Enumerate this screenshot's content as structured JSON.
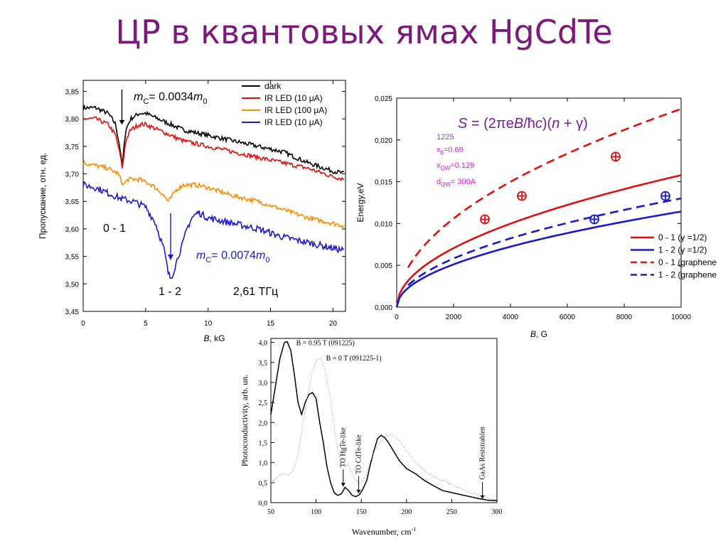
{
  "title": "ЦР в квантовых ямах HgCdTe",
  "chart_data": [
    {
      "type": "line",
      "xlabel_italic": "B",
      "xlabel_rest": ", kG",
      "ylabel": "Пропускание, отн. ед.",
      "xlim": [
        0,
        21
      ],
      "ylim": [
        3.45,
        3.87
      ],
      "x_ticks": [
        "0",
        "5",
        "10",
        "15",
        "20"
      ],
      "x_tick_values": [
        0,
        5,
        10,
        15,
        20
      ],
      "y_ticks": [
        "3,45",
        "3,50",
        "3,55",
        "3,60",
        "3,65",
        "3,70",
        "3,75",
        "3,80",
        "3,85"
      ],
      "y_tick_values": [
        3.45,
        3.5,
        3.55,
        3.6,
        3.65,
        3.7,
        3.75,
        3.8,
        3.85
      ],
      "legend_position": "top-right",
      "series": [
        {
          "name": "dark",
          "color": "#000000",
          "x": [
            0,
            1,
            2,
            2.6,
            3.0,
            3.1,
            3.2,
            3.4,
            3.8,
            4.5,
            5,
            6,
            7,
            8,
            10,
            12,
            14,
            16,
            18,
            20,
            21
          ],
          "y": [
            3.82,
            3.82,
            3.81,
            3.79,
            3.74,
            3.71,
            3.73,
            3.78,
            3.8,
            3.81,
            3.81,
            3.8,
            3.79,
            3.78,
            3.77,
            3.76,
            3.75,
            3.74,
            3.72,
            3.705,
            3.7
          ]
        },
        {
          "name": "IR LED (10 μA)",
          "color": "#e01010",
          "x": [
            0,
            1,
            2,
            2.6,
            3.0,
            3.1,
            3.2,
            3.4,
            3.8,
            4.5,
            5,
            6,
            7,
            8,
            10,
            12,
            14,
            16,
            18,
            20,
            21
          ],
          "y": [
            3.8,
            3.8,
            3.79,
            3.77,
            3.73,
            3.71,
            3.72,
            3.76,
            3.78,
            3.79,
            3.79,
            3.78,
            3.77,
            3.76,
            3.75,
            3.74,
            3.73,
            3.72,
            3.71,
            3.695,
            3.69
          ]
        },
        {
          "name": "IR LED (100 μA)",
          "color": "#ff8c00",
          "x": [
            0,
            1,
            2,
            2.8,
            3.2,
            3.6,
            4.5,
            5.5,
            6.3,
            6.8,
            7.0,
            7.4,
            8,
            9,
            10,
            12,
            14,
            16,
            18,
            20,
            21
          ],
          "y": [
            3.72,
            3.715,
            3.71,
            3.7,
            3.68,
            3.69,
            3.69,
            3.68,
            3.665,
            3.65,
            3.655,
            3.67,
            3.68,
            3.68,
            3.675,
            3.66,
            3.65,
            3.635,
            3.62,
            3.61,
            3.605
          ]
        },
        {
          "name": "IR LED (10 μA)",
          "color": "#1a1acc",
          "x": [
            0,
            1,
            2,
            3,
            4,
            5,
            5.8,
            6.5,
            6.8,
            7.0,
            7.2,
            7.6,
            8.0,
            8.3,
            8.7,
            9.2,
            10,
            12,
            14,
            16,
            18,
            20,
            21
          ],
          "y": [
            3.68,
            3.675,
            3.665,
            3.655,
            3.65,
            3.64,
            3.61,
            3.56,
            3.52,
            3.51,
            3.52,
            3.55,
            3.575,
            3.6,
            3.62,
            3.63,
            3.62,
            3.61,
            3.6,
            3.585,
            3.575,
            3.565,
            3.56
          ]
        }
      ],
      "annotations": {
        "mc1_pre": "m",
        "mc1_sub": "C",
        "mc1_mid": "= 0.0034",
        "mc1_m": "m",
        "mc1_sub0": "0",
        "mc2_pre": "m",
        "mc2_sub": "C",
        "mc2_mid": "= 0.0074",
        "mc2_m": "m",
        "mc2_sub0": "0",
        "transition1": "0 - 1",
        "transition2": "1 - 2",
        "frequency": "2,61 ТГц"
      }
    },
    {
      "type": "line",
      "xlabel_italic": "B",
      "xlabel_rest": ", G",
      "ylabel": "Energy,eV",
      "xlim": [
        0,
        10000
      ],
      "ylim": [
        0,
        0.025
      ],
      "x_ticks": [
        "0",
        "2000",
        "4000",
        "6000",
        "8000",
        "10000"
      ],
      "x_tick_values": [
        0,
        2000,
        4000,
        6000,
        8000,
        10000
      ],
      "y_ticks": [
        "0,000",
        "0,005",
        "0,010",
        "0,015",
        "0,020",
        "0,025"
      ],
      "y_tick_values": [
        0,
        0.005,
        0.01,
        0.015,
        0.02,
        0.025
      ],
      "formula": "S = (2πeB/ħc)(n + γ)",
      "params": [
        "1225",
        "x_b=0.69",
        "x_QW=0.129",
        "d_QW= 300A"
      ],
      "params_display": {
        "p1": "1225",
        "p2a": "x",
        "p2b": "b",
        "p2c": "=0.69",
        "p3a": "x",
        "p3b": "QW",
        "p3c": "=0.129",
        "p4a": "d",
        "p4b": "QW",
        "p4c": "= 300A"
      },
      "legend_position": "bottom-right",
      "series": [
        {
          "name": "0 - 1 (γ =1/2)",
          "color": "#e01010",
          "dash": false,
          "coef": 0.0001578
        },
        {
          "name": "1 - 2 (γ =1/2)",
          "color": "#1a1acc",
          "dash": false,
          "coef": 0.0001143
        },
        {
          "name": "0 - 1 (graphene",
          "color": "#e01010",
          "dash": true,
          "coef": 0.000237
        },
        {
          "name": "1 - 2 (graphene",
          "color": "#1a1acc",
          "dash": true,
          "coef": 0.00013
        }
      ],
      "experimental_points": [
        {
          "x": 3100,
          "y": 0.0105,
          "color": "#e01010"
        },
        {
          "x": 4400,
          "y": 0.0133,
          "color": "#e01010"
        },
        {
          "x": 7700,
          "y": 0.018,
          "color": "#e01010"
        },
        {
          "x": 6950,
          "y": 0.0105,
          "color": "#1a1acc"
        },
        {
          "x": 9450,
          "y": 0.0133,
          "color": "#1a1acc"
        }
      ]
    },
    {
      "type": "line",
      "xlabel": "Wavenumber, cm",
      "xlabel_sup": "-1",
      "ylabel": "Photoconductivity, arb. un.",
      "xlim": [
        50,
        300
      ],
      "ylim": [
        0,
        4.1
      ],
      "x_ticks": [
        "50",
        "100",
        "150",
        "200",
        "250",
        "300"
      ],
      "x_tick_values": [
        50,
        100,
        150,
        200,
        250,
        300
      ],
      "y_ticks": [
        "0,0",
        "0,5",
        "1,0",
        "1,5",
        "2,0",
        "2,5",
        "3,0",
        "3,5",
        "4,0"
      ],
      "y_tick_values": [
        0,
        0.5,
        1.0,
        1.5,
        2.0,
        2.5,
        3.0,
        3.5,
        4.0
      ],
      "series": [
        {
          "name": "B = 0.95 T (091225)",
          "style": "solid",
          "x": [
            50,
            55,
            60,
            65,
            68,
            72,
            76,
            80,
            84,
            88,
            92,
            96,
            100,
            104,
            108,
            112,
            116,
            120,
            124,
            128,
            132,
            136,
            140,
            144,
            148,
            152,
            156,
            160,
            164,
            168,
            172,
            176,
            180,
            184,
            188,
            192,
            196,
            200,
            210,
            220,
            230,
            240,
            250,
            260,
            270,
            280,
            290,
            300
          ],
          "y": [
            2.2,
            2.9,
            3.6,
            4.0,
            4.02,
            3.8,
            3.2,
            2.5,
            2.2,
            2.5,
            2.7,
            2.75,
            2.6,
            2.0,
            1.5,
            0.9,
            0.5,
            0.25,
            0.18,
            0.22,
            0.38,
            0.3,
            0.18,
            0.15,
            0.2,
            0.35,
            0.55,
            0.95,
            1.3,
            1.6,
            1.68,
            1.62,
            1.5,
            1.35,
            1.2,
            1.05,
            0.95,
            0.85,
            0.72,
            0.55,
            0.42,
            0.3,
            0.25,
            0.2,
            0.15,
            0.1,
            0.06,
            0.05
          ]
        },
        {
          "name": "B = 0 T (091225-1)",
          "style": "dotted",
          "x": [
            50,
            60,
            70,
            75,
            80,
            85,
            90,
            95,
            100,
            105,
            110,
            115,
            120,
            124,
            128,
            132,
            136,
            140,
            144,
            150,
            156,
            160,
            168,
            176,
            184,
            192,
            200,
            210,
            220,
            230,
            240,
            250,
            260,
            270,
            280,
            290,
            300
          ],
          "y": [
            0.5,
            0.7,
            0.7,
            0.8,
            1.2,
            1.9,
            2.6,
            3.2,
            3.55,
            3.6,
            3.3,
            2.7,
            1.9,
            1.3,
            0.95,
            0.92,
            0.95,
            0.7,
            0.55,
            0.5,
            0.7,
            1.05,
            1.45,
            1.65,
            1.68,
            1.55,
            1.3,
            1.0,
            0.8,
            0.65,
            0.55,
            0.45,
            0.35,
            0.25,
            0.18,
            0.12,
            0.08
          ]
        }
      ],
      "markers": [
        {
          "label": "TO HgTe-like",
          "x": 130,
          "y": 0.35
        },
        {
          "label": "TO CdTe-like",
          "x": 147,
          "y": 0.18
        },
        {
          "label": "GaAs Reststrahlen",
          "x": 284,
          "y": 0.04
        }
      ],
      "legend_position": "top-left"
    }
  ]
}
